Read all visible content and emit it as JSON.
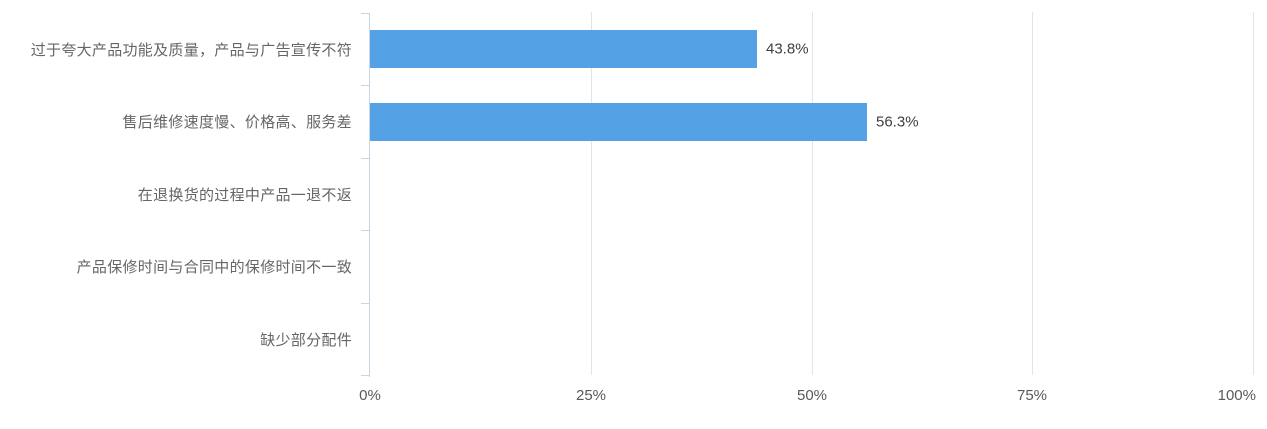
{
  "chart_data": {
    "type": "bar",
    "orientation": "horizontal",
    "title": "",
    "xlabel": "",
    "ylabel": "",
    "legend": "none",
    "grid": "vertical-gridlines-only",
    "categories": [
      "过于夸大产品功能及质量，产品与广告宣传不符",
      "售后维修速度慢、价格高、服务差",
      "在退换货的过程中产品一退不返",
      "产品保修时间与合同中的保修时间不一致",
      "缺少部分配件"
    ],
    "values": [
      43.8,
      56.3,
      null,
      null,
      null
    ],
    "value_labels": [
      "43.8%",
      "56.3%",
      null,
      null,
      null
    ],
    "x_ticks": [
      "0%",
      "25%",
      "50%",
      "75%",
      "100%"
    ],
    "x_tick_values": [
      0,
      25,
      50,
      75,
      100
    ],
    "xlim": [
      0,
      100
    ],
    "colors": {
      "bar": "#55A1E6",
      "gridline": "#E4E4E4",
      "axis": "#C9D5E1",
      "category_label": "#666666",
      "value_label": "#404040",
      "tick_label": "#595959",
      "background": "#FFFFFF"
    }
  }
}
